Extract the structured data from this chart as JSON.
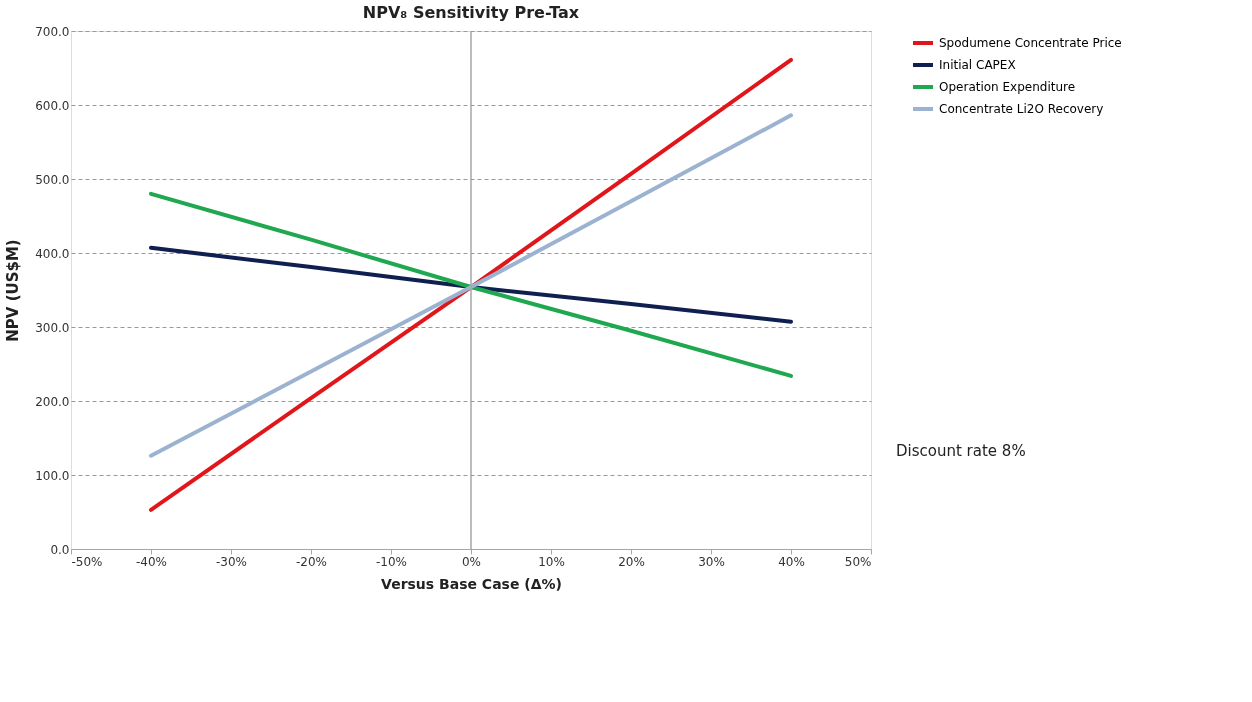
{
  "chart_data": {
    "type": "line",
    "title": "NPV₈ Sensitivity Pre-Tax",
    "xlabel": "Versus Base Case (Δ%)",
    "ylabel": "NPV (US$M)",
    "x": [
      -40,
      -20,
      0,
      20,
      40
    ],
    "series": [
      {
        "name": "Spodumene Concentrate Price",
        "color": "#e0161b",
        "values": [
          53,
          204,
          354,
          507,
          661
        ]
      },
      {
        "name": "Initial CAPEX",
        "color": "#0f1f4f",
        "values": [
          407,
          381,
          354,
          331,
          307
        ]
      },
      {
        "name": "Operation Expenditure",
        "color": "#1fa84f",
        "values": [
          480,
          418,
          354,
          295,
          234
        ]
      },
      {
        "name": "Concentrate Li2O Recovery",
        "color": "#9bb3d1",
        "values": [
          126,
          240,
          354,
          470,
          586
        ]
      }
    ],
    "xlim": [
      -50,
      50
    ],
    "xticks": [
      {
        "value": -50,
        "label": "-50%"
      },
      {
        "value": -40,
        "label": "-40%"
      },
      {
        "value": -30,
        "label": "-30%"
      },
      {
        "value": -20,
        "label": "-20%"
      },
      {
        "value": -10,
        "label": "-10%"
      },
      {
        "value": 0,
        "label": "0%"
      },
      {
        "value": 10,
        "label": "10%"
      },
      {
        "value": 20,
        "label": "20%"
      },
      {
        "value": 30,
        "label": "30%"
      },
      {
        "value": 40,
        "label": "40%"
      },
      {
        "value": 50,
        "label": "50%"
      }
    ],
    "ylim": [
      0,
      700
    ],
    "yticks": [
      {
        "value": 0,
        "label": "0.0"
      },
      {
        "value": 100,
        "label": "100.0"
      },
      {
        "value": 200,
        "label": "200.0"
      },
      {
        "value": 300,
        "label": "300.0"
      },
      {
        "value": 400,
        "label": "400.0"
      },
      {
        "value": 500,
        "label": "500.0"
      },
      {
        "value": 600,
        "label": "600.0"
      },
      {
        "value": 700,
        "label": "700.0"
      }
    ],
    "ref_lines": [
      {
        "axis": "x",
        "value": 0,
        "color": "#a6a6a6"
      }
    ],
    "grid": "y",
    "line_style": "solid",
    "legend": "right",
    "marker": "none",
    "annotations": [
      "Discount rate 8%"
    ]
  }
}
